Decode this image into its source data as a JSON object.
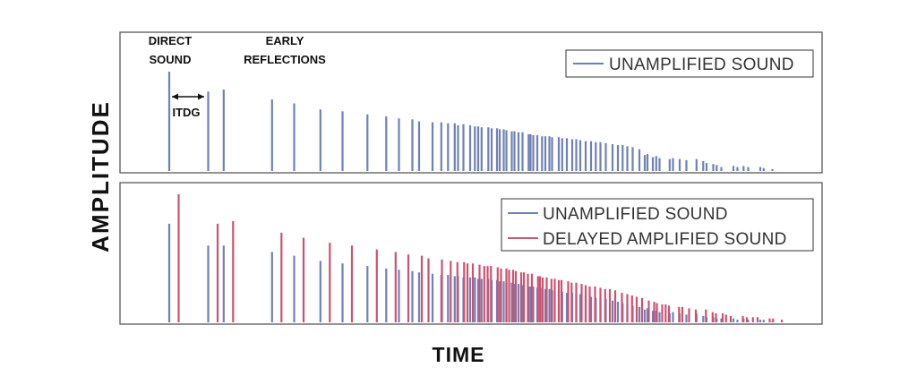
{
  "chart_data": {
    "type": "bar",
    "xlabel": "TIME",
    "ylabel": "AMPLITUDE",
    "x_unit": "time (relative)",
    "y_unit": "amplitude (relative, 0-1)",
    "colors": {
      "unamplified": "#6f80b5",
      "delayed": "#c95470"
    },
    "panels": [
      {
        "id": "top",
        "legend": [
          "UNAMPLIFIED SOUND"
        ],
        "annotations": {
          "direct_sound": [
            "DIRECT",
            "SOUND"
          ],
          "early_reflections": [
            "EARLY",
            "REFLECTIONS"
          ],
          "itdg": "ITDG"
        },
        "series": [
          {
            "name": "UNAMPLIFIED SOUND",
            "color": "#6f80b5",
            "x": [
              0.0,
              0.058,
              0.081,
              0.153,
              0.186,
              0.225,
              0.258,
              0.295,
              0.323,
              0.342,
              0.362,
              0.372,
              0.392,
              0.405,
              0.415,
              0.425,
              0.43,
              0.438,
              0.448,
              0.455,
              0.46,
              0.465,
              0.475,
              0.48,
              0.488,
              0.492,
              0.498,
              0.502,
              0.51,
              0.514,
              0.52,
              0.526,
              0.535,
              0.538,
              0.542,
              0.548,
              0.555,
              0.56,
              0.566,
              0.57,
              0.58,
              0.585,
              0.592,
              0.6,
              0.606,
              0.612,
              0.62,
              0.628,
              0.635,
              0.642,
              0.65,
              0.66,
              0.668,
              0.675,
              0.682,
              0.69,
              0.7,
              0.708,
              0.712,
              0.72,
              0.725,
              0.73,
              0.745,
              0.75,
              0.76,
              0.77,
              0.785,
              0.795,
              0.8,
              0.81,
              0.815,
              0.822,
              0.84,
              0.846,
              0.855,
              0.862,
              0.88,
              0.885,
              0.898
            ],
            "values": [
              1.0,
              0.8,
              0.82,
              0.72,
              0.68,
              0.62,
              0.6,
              0.57,
              0.55,
              0.53,
              0.52,
              0.5,
              0.49,
              0.49,
              0.48,
              0.48,
              0.46,
              0.47,
              0.46,
              0.45,
              0.45,
              0.44,
              0.44,
              0.43,
              0.43,
              0.42,
              0.42,
              0.41,
              0.4,
              0.4,
              0.39,
              0.39,
              0.37,
              0.37,
              0.36,
              0.36,
              0.35,
              0.35,
              0.35,
              0.34,
              0.34,
              0.33,
              0.33,
              0.32,
              0.32,
              0.31,
              0.3,
              0.3,
              0.29,
              0.29,
              0.28,
              0.27,
              0.26,
              0.26,
              0.25,
              0.24,
              0.22,
              0.16,
              0.17,
              0.14,
              0.15,
              0.13,
              0.12,
              0.13,
              0.12,
              0.11,
              0.12,
              0.1,
              0.08,
              0.07,
              0.06,
              0.04,
              0.05,
              0.04,
              0.05,
              0.04,
              0.04,
              0.03,
              0.02
            ]
          }
        ]
      },
      {
        "id": "bottom",
        "legend": [
          "UNAMPLIFIED SOUND",
          "DELAYED AMPLIFIED SOUND"
        ],
        "series": [
          {
            "name": "UNAMPLIFIED SOUND",
            "color": "#6f80b5",
            "x": [
              0.0,
              0.058,
              0.081,
              0.153,
              0.186,
              0.225,
              0.258,
              0.295,
              0.323,
              0.342,
              0.362,
              0.372,
              0.392,
              0.405,
              0.415,
              0.425,
              0.43,
              0.438,
              0.448,
              0.455,
              0.46,
              0.465,
              0.475,
              0.48,
              0.488,
              0.492,
              0.498,
              0.502,
              0.51,
              0.514,
              0.52,
              0.526,
              0.535,
              0.538,
              0.542,
              0.548,
              0.555,
              0.56,
              0.566,
              0.57,
              0.58,
              0.585,
              0.592,
              0.6,
              0.606,
              0.612,
              0.62,
              0.628,
              0.635,
              0.642,
              0.65,
              0.66,
              0.668,
              0.675,
              0.682,
              0.69,
              0.7,
              0.708,
              0.712,
              0.72,
              0.725,
              0.73,
              0.745,
              0.75,
              0.76,
              0.77,
              0.785,
              0.795,
              0.8,
              0.81,
              0.815,
              0.822,
              0.84,
              0.846,
              0.855,
              0.862,
              0.88,
              0.885,
              0.898
            ],
            "values": [
              0.77,
              0.6,
              0.6,
              0.55,
              0.52,
              0.48,
              0.46,
              0.44,
              0.42,
              0.41,
              0.4,
              0.39,
              0.38,
              0.37,
              0.37,
              0.36,
              0.36,
              0.35,
              0.35,
              0.35,
              0.34,
              0.34,
              0.34,
              0.33,
              0.33,
              0.32,
              0.32,
              0.31,
              0.31,
              0.3,
              0.3,
              0.29,
              0.28,
              0.28,
              0.28,
              0.27,
              0.27,
              0.26,
              0.26,
              0.25,
              0.25,
              0.24,
              0.23,
              0.23,
              0.22,
              0.22,
              0.21,
              0.2,
              0.19,
              0.19,
              0.18,
              0.17,
              0.16,
              0.15,
              0.14,
              0.13,
              0.12,
              0.1,
              0.11,
              0.09,
              0.09,
              0.08,
              0.07,
              0.08,
              0.07,
              0.06,
              0.07,
              0.05,
              0.04,
              0.04,
              0.03,
              0.03,
              0.03,
              0.02,
              0.03,
              0.02,
              0.02,
              0.02,
              0.01
            ]
          },
          {
            "name": "DELAYED AMPLIFIED SOUND",
            "color": "#c95470",
            "x": [
              0.014,
              0.072,
              0.095,
              0.167,
              0.2,
              0.239,
              0.272,
              0.309,
              0.337,
              0.356,
              0.376,
              0.386,
              0.406,
              0.419,
              0.429,
              0.439,
              0.444,
              0.452,
              0.462,
              0.469,
              0.474,
              0.479,
              0.489,
              0.494,
              0.502,
              0.506,
              0.512,
              0.516,
              0.524,
              0.528,
              0.534,
              0.54,
              0.549,
              0.552,
              0.556,
              0.562,
              0.569,
              0.574,
              0.58,
              0.584,
              0.594,
              0.599,
              0.606,
              0.614,
              0.62,
              0.626,
              0.634,
              0.642,
              0.649,
              0.656,
              0.664,
              0.674,
              0.682,
              0.689,
              0.696,
              0.704,
              0.714,
              0.722,
              0.726,
              0.734,
              0.739,
              0.744,
              0.759,
              0.764,
              0.774,
              0.784,
              0.799,
              0.809,
              0.814,
              0.824,
              0.829,
              0.836,
              0.854,
              0.86,
              0.869,
              0.876,
              0.894,
              0.899,
              0.912
            ],
            "values": [
              1.0,
              0.77,
              0.79,
              0.7,
              0.66,
              0.62,
              0.6,
              0.57,
              0.55,
              0.53,
              0.52,
              0.5,
              0.49,
              0.48,
              0.47,
              0.47,
              0.46,
              0.46,
              0.45,
              0.44,
              0.44,
              0.44,
              0.43,
              0.42,
              0.42,
              0.41,
              0.41,
              0.4,
              0.39,
              0.39,
              0.38,
              0.38,
              0.36,
              0.36,
              0.35,
              0.35,
              0.34,
              0.34,
              0.33,
              0.33,
              0.32,
              0.31,
              0.31,
              0.3,
              0.29,
              0.28,
              0.28,
              0.27,
              0.26,
              0.26,
              0.25,
              0.23,
              0.22,
              0.21,
              0.2,
              0.19,
              0.17,
              0.16,
              0.15,
              0.14,
              0.14,
              0.13,
              0.12,
              0.12,
              0.11,
              0.1,
              0.1,
              0.08,
              0.07,
              0.07,
              0.06,
              0.05,
              0.05,
              0.04,
              0.04,
              0.04,
              0.03,
              0.03,
              0.02
            ]
          }
        ]
      }
    ]
  }
}
